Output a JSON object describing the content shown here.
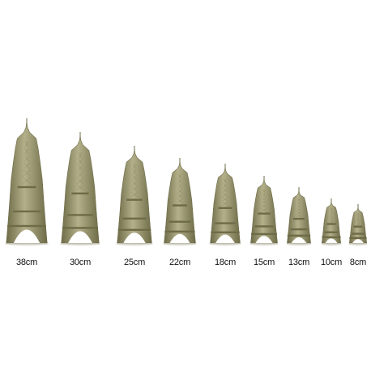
{
  "product": {
    "colors": {
      "background": "#ffffff",
      "bronze": "#9c9a6c",
      "bronze_dark": "#6e6c48",
      "shadow": "#d9d8cf"
    },
    "models": [
      {
        "label": "38cm"
      },
      {
        "label": "30cm"
      },
      {
        "label": "25cm"
      },
      {
        "label": "22cm"
      },
      {
        "label": "18cm"
      },
      {
        "label": "15cm"
      },
      {
        "label": "13cm"
      },
      {
        "label": "10cm"
      },
      {
        "label": "8cm"
      }
    ]
  }
}
